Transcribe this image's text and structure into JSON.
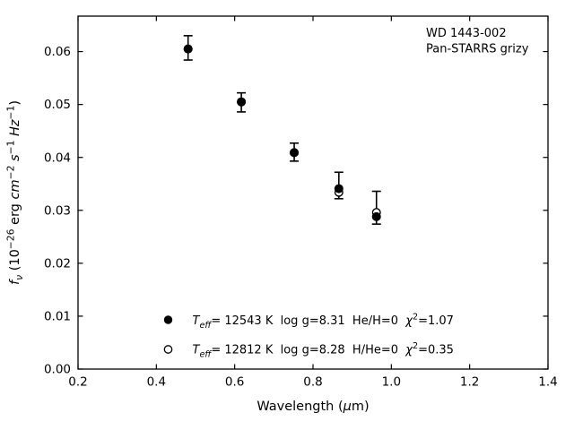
{
  "figure": {
    "background": "#ffffff",
    "ink": "#000000"
  },
  "chart_data": {
    "type": "scatter",
    "annotations": [
      "WD 1443-002",
      "Pan-STARRS grizy"
    ],
    "xlabel_parts": [
      {
        "t": "Wavelength ("
      },
      {
        "t": "μ",
        "italic": true
      },
      {
        "t": "m)"
      }
    ],
    "ylabel_parts": [
      {
        "t": "f",
        "italic": true
      },
      {
        "t": "ν",
        "italic": true,
        "sub": true
      },
      {
        "t": " (10"
      },
      {
        "t": "−26",
        "sup": true
      },
      {
        "t": " erg "
      },
      {
        "t": "cm",
        "italic": true
      },
      {
        "t": "−2",
        "sup": true
      },
      {
        "t": " "
      },
      {
        "t": "s",
        "italic": true
      },
      {
        "t": "−1",
        "sup": true
      },
      {
        "t": " "
      },
      {
        "t": "Hz",
        "italic": true
      },
      {
        "t": "−1",
        "sup": true
      },
      {
        "t": ")"
      }
    ],
    "xlim": [
      0.2,
      1.4
    ],
    "ylim": [
      0.0,
      0.0667
    ],
    "grid": false,
    "tick_direction": "in",
    "xticks": {
      "values": [
        0.2,
        0.4,
        0.6,
        0.8,
        1.0,
        1.2,
        1.4
      ],
      "labels": [
        "0.2",
        "0.4",
        "0.6",
        "0.8",
        "1.0",
        "1.2",
        "1.4"
      ]
    },
    "yticks": {
      "values": [
        0.0,
        0.01,
        0.02,
        0.03,
        0.04,
        0.05,
        0.06
      ],
      "labels": [
        "0.00",
        "0.01",
        "0.02",
        "0.03",
        "0.04",
        "0.05",
        "0.06"
      ]
    },
    "bands": [
      "g",
      "r",
      "i",
      "z",
      "y"
    ],
    "x": [
      0.481,
      0.617,
      0.752,
      0.866,
      0.962
    ],
    "series": [
      {
        "name": "observed-flux",
        "marker": "errorbar",
        "y": [
          0.0607,
          0.0504,
          0.041,
          0.0347,
          0.0305
        ],
        "err": [
          0.0023,
          0.0018,
          0.0017,
          0.0025,
          0.0031
        ]
      },
      {
        "name": "model-12543K-pure-H",
        "marker": "filled-circle",
        "y": [
          0.0605,
          0.0505,
          0.0409,
          0.0341,
          0.0288
        ]
      },
      {
        "name": "model-12812K-pure-He",
        "marker": "open-circle",
        "y": [
          0.0605,
          0.0505,
          0.0409,
          0.0334,
          0.0296
        ]
      }
    ],
    "legend": {
      "position": "lower-left-inside",
      "entries": [
        {
          "marker": "filled-circle",
          "parts": [
            {
              "t": "T",
              "italic": true
            },
            {
              "t": "eff",
              "italic": true,
              "sub": true
            },
            {
              "t": "= 12543 K  log g=8.31  He/H=0  "
            },
            {
              "t": "χ",
              "italic": true
            },
            {
              "t": "2",
              "sup": true
            },
            {
              "t": "=1.07"
            }
          ]
        },
        {
          "marker": "open-circle",
          "parts": [
            {
              "t": "T",
              "italic": true
            },
            {
              "t": "eff",
              "italic": true,
              "sub": true
            },
            {
              "t": "= 12812 K  log g=8.28  H/He=0  "
            },
            {
              "t": "χ",
              "italic": true
            },
            {
              "t": "2",
              "sup": true
            },
            {
              "t": "=0.35"
            }
          ]
        }
      ]
    }
  }
}
